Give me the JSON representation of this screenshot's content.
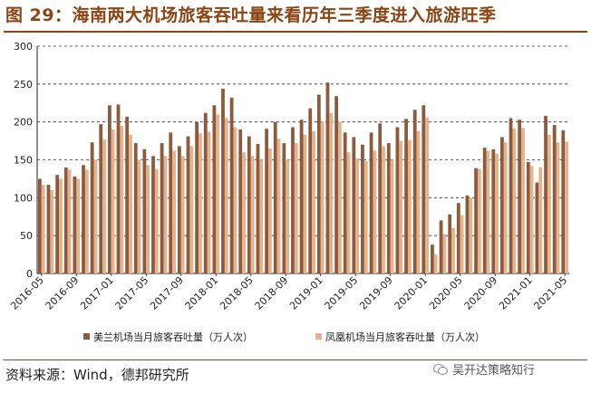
{
  "header": {
    "figure_title": "图 29：海南两大机场旅客吞吐量来看历年三季度进入旅游旺季"
  },
  "footer": {
    "source": "资料来源：Wind，德邦研究所",
    "watermark": "吴开达策略知行",
    "watermark_icon": "wechat-icon"
  },
  "colors": {
    "series1": "#8C5A3C",
    "series2": "#E3B48F",
    "title": "#8B4513",
    "grid": "#333333"
  },
  "chart_data": {
    "type": "bar",
    "title": "海南两大机场旅客吞吐量来看历年三季度进入旅游旺季",
    "xlabel": "",
    "ylabel": "",
    "ylim": [
      0,
      300
    ],
    "yticks": [
      0,
      50,
      100,
      150,
      200,
      250,
      300
    ],
    "grid": "horizontal dashed",
    "legend_position": "bottom",
    "categories": [
      "2016-05",
      "2016-06",
      "2016-07",
      "2016-08",
      "2016-09",
      "2016-10",
      "2016-11",
      "2016-12",
      "2017-01",
      "2017-02",
      "2017-03",
      "2017-04",
      "2017-05",
      "2017-06",
      "2017-07",
      "2017-08",
      "2017-09",
      "2017-10",
      "2017-11",
      "2017-12",
      "2018-01",
      "2018-02",
      "2018-03",
      "2018-04",
      "2018-05",
      "2018-06",
      "2018-07",
      "2018-08",
      "2018-09",
      "2018-10",
      "2018-11",
      "2018-12",
      "2019-01",
      "2019-02",
      "2019-03",
      "2019-04",
      "2019-05",
      "2019-06",
      "2019-07",
      "2019-08",
      "2019-09",
      "2019-10",
      "2019-11",
      "2019-12",
      "2020-01",
      "2020-02",
      "2020-03",
      "2020-04",
      "2020-05",
      "2020-06",
      "2020-07",
      "2020-08",
      "2020-09",
      "2020-10",
      "2020-11",
      "2020-12",
      "2021-01",
      "2021-02",
      "2021-03",
      "2021-04",
      "2021-05"
    ],
    "xtick_labels": [
      "2016-05",
      "2016-09",
      "2017-01",
      "2017-05",
      "2017-09",
      "2018-01",
      "2018-05",
      "2018-09",
      "2019-01",
      "2019-05",
      "2019-09",
      "2020-01",
      "2020-05",
      "2020-09",
      "2021-01",
      "2021-05"
    ],
    "series": [
      {
        "name": "美兰机场当月旅客吞吐量（万人次）",
        "values": [
          125,
          117,
          130,
          140,
          128,
          143,
          173,
          197,
          222,
          223,
          207,
          172,
          164,
          155,
          172,
          186,
          168,
          181,
          200,
          212,
          222,
          244,
          232,
          190,
          181,
          171,
          191,
          200,
          172,
          193,
          203,
          218,
          236,
          252,
          234,
          186,
          180,
          170,
          186,
          198,
          172,
          193,
          204,
          216,
          222,
          38,
          70,
          78,
          93,
          103,
          139,
          166,
          164,
          180,
          205,
          203,
          147,
          120,
          208,
          196,
          189
        ]
      },
      {
        "name": "凤凰机场当月旅客吞吐量（万人次）",
        "values": [
          117,
          110,
          125,
          137,
          125,
          137,
          150,
          177,
          190,
          195,
          183,
          150,
          143,
          138,
          155,
          162,
          155,
          168,
          185,
          187,
          210,
          205,
          193,
          160,
          155,
          150,
          165,
          178,
          150,
          172,
          183,
          188,
          200,
          212,
          200,
          160,
          152,
          148,
          162,
          168,
          150,
          175,
          176,
          188,
          206,
          25,
          52,
          60,
          77,
          100,
          138,
          162,
          158,
          173,
          191,
          192,
          142,
          140,
          183,
          173,
          174
        ]
      }
    ]
  }
}
